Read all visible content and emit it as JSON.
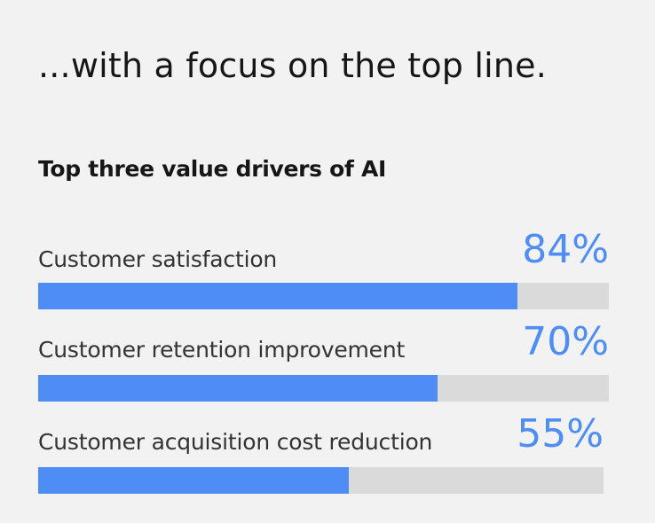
{
  "headline": "...with a focus on the top line.",
  "colors": {
    "background": "#f2f2f2",
    "bar_fill": "#4d8df5",
    "bar_track": "#dadada",
    "value_text": "#4d8df5",
    "label_text": "#333333"
  },
  "chart_data": {
    "type": "bar",
    "orientation": "horizontal",
    "title": "Top three value drivers of AI",
    "categories": [
      "Customer satisfaction",
      "Customer retention improvement",
      "Customer acquisition cost reduction"
    ],
    "values": [
      84,
      70,
      55
    ],
    "value_labels": [
      "84%",
      "70%",
      "55%"
    ],
    "xlim": [
      0,
      100
    ],
    "grid": false,
    "legend": "none"
  }
}
